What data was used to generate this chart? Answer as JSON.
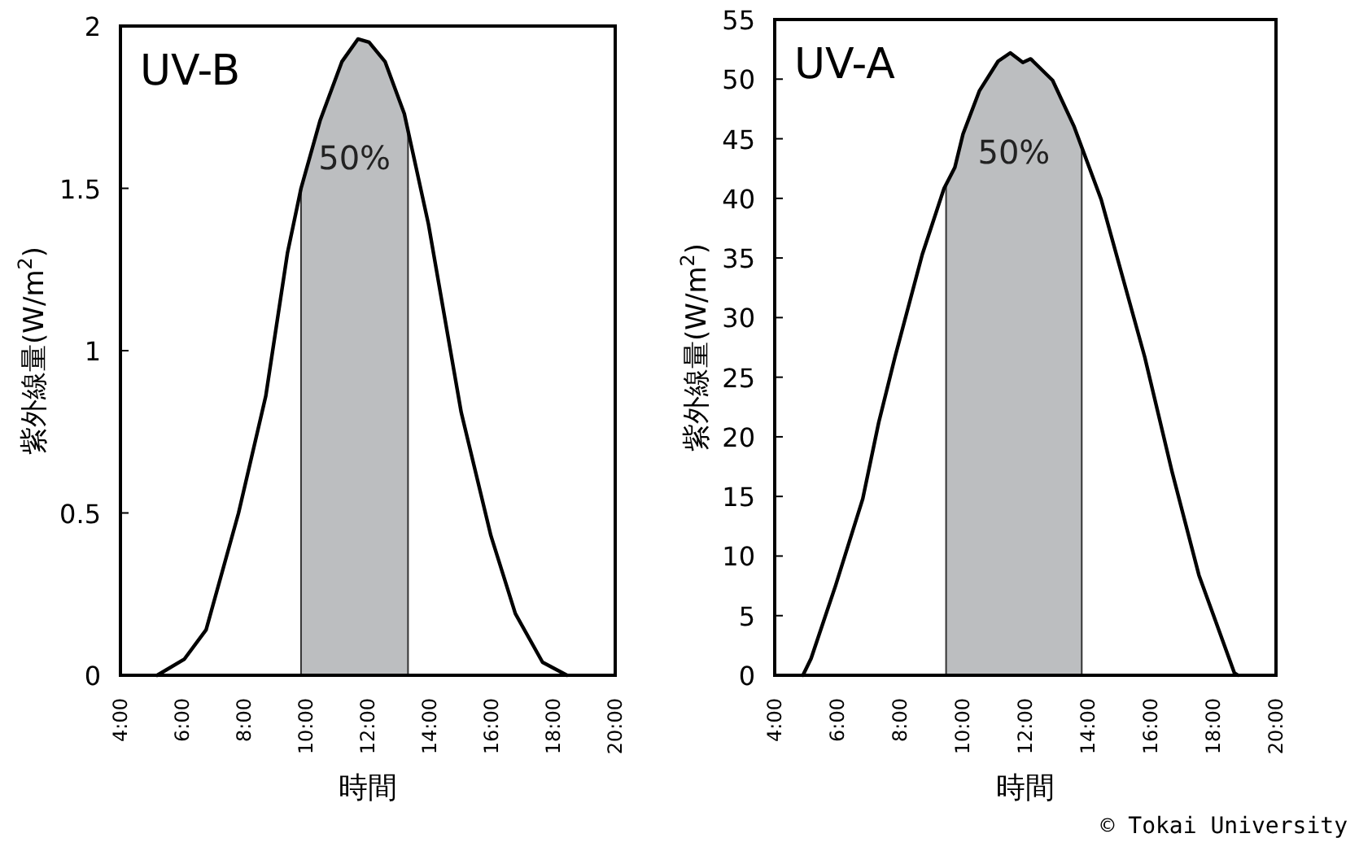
{
  "chart_data": [
    {
      "type": "line",
      "title": "UV-B",
      "xlabel": "時間",
      "ylabel": "紫外線量(W/m$^{2}$)",
      "xlim": [
        4,
        20
      ],
      "ylim": [
        0,
        2
      ],
      "xticks": [
        {
          "value": 4,
          "label": "4:00"
        },
        {
          "value": 6,
          "label": "6:00"
        },
        {
          "value": 8,
          "label": "8:00"
        },
        {
          "value": 10,
          "label": "10:00"
        },
        {
          "value": 12,
          "label": "12:00"
        },
        {
          "value": 14,
          "label": "14:00"
        },
        {
          "value": 16,
          "label": "16:00"
        },
        {
          "value": 18,
          "label": "18:00"
        },
        {
          "value": 20,
          "label": "20:00"
        }
      ],
      "yticks": [
        0,
        {
          "value": 0.5,
          "label": "0.5"
        },
        1,
        {
          "value": 1.5,
          "label": "1.5"
        },
        2
      ],
      "series": [
        {
          "color": "#000000",
          "x": [
            5.19,
            6.07,
            6.77,
            7.82,
            8.7,
            9.4,
            9.84,
            10.46,
            11.16,
            11.68,
            12.04,
            12.56,
            13.18,
            13.96,
            15.02,
            15.98,
            16.77,
            17.65,
            18.44
          ],
          "values": [
            0,
            0.05,
            0.14,
            0.5,
            0.86,
            1.3,
            1.5,
            1.71,
            1.89,
            1.96,
            1.95,
            1.89,
            1.73,
            1.39,
            0.81,
            0.43,
            0.19,
            0.04,
            0
          ]
        }
      ],
      "bands": [
        {
          "axis": "x",
          "from": 9.84,
          "to": 13.3,
          "label": "50%",
          "color": "#bcbec0"
        }
      ],
      "grid": false,
      "marker": "none",
      "line_style": "solid"
    },
    {
      "type": "line",
      "title": "UV-A",
      "xlabel": "時間",
      "ylabel": "紫外線量(W/m$^{2}$)",
      "xlim": [
        4,
        20
      ],
      "ylim": [
        0,
        55
      ],
      "xticks": [
        {
          "value": 4,
          "label": "4:00"
        },
        {
          "value": 6,
          "label": "6:00"
        },
        {
          "value": 8,
          "label": "8:00"
        },
        {
          "value": 10,
          "label": "10:00"
        },
        {
          "value": 12,
          "label": "12:00"
        },
        {
          "value": 14,
          "label": "14:00"
        },
        {
          "value": 16,
          "label": "16:00"
        },
        {
          "value": 18,
          "label": "18:00"
        },
        {
          "value": 20,
          "label": "20:00"
        }
      ],
      "yticks": [
        0,
        5,
        10,
        15,
        20,
        25,
        30,
        35,
        40,
        45,
        50,
        55
      ],
      "series": [
        {
          "color": "#000000",
          "x": [
            4.9,
            5.16,
            5.94,
            6.81,
            7.32,
            7.84,
            8.71,
            9.4,
            9.75,
            10.01,
            10.53,
            11.13,
            11.52,
            11.92,
            12.17,
            12.87,
            13.56,
            14.42,
            15.81,
            16.68,
            17.54,
            18.23,
            18.67,
            18.79
          ],
          "values": [
            0,
            1.4,
            7.5,
            14.8,
            21.2,
            26.7,
            35.3,
            40.8,
            42.6,
            45.4,
            49,
            51.5,
            52.2,
            51.4,
            51.7,
            49.9,
            46,
            39.9,
            26.7,
            17.1,
            8.4,
            3.4,
            0.2,
            0
          ]
        }
      ],
      "bands": [
        {
          "axis": "x",
          "from": 9.47,
          "to": 13.8,
          "label": "50%",
          "color": "#bcbec0"
        }
      ],
      "grid": false,
      "marker": "none",
      "line_style": "solid",
      "annotations": [
        "© Tokai University"
      ]
    }
  ]
}
